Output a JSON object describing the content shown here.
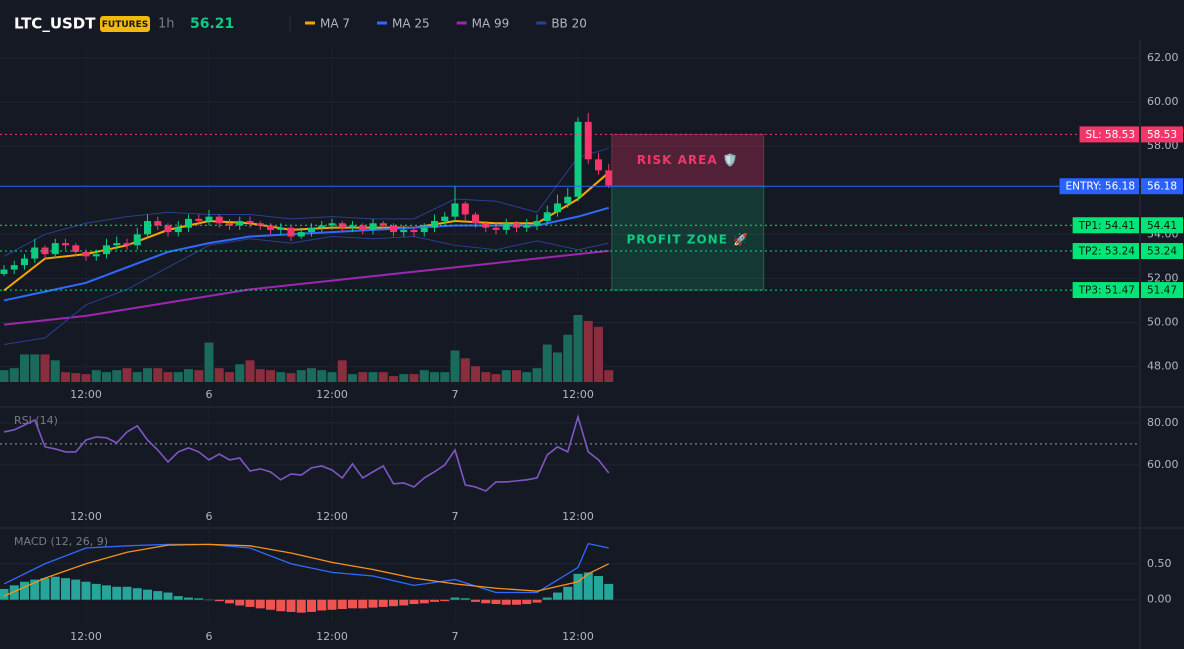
{
  "header": {
    "symbol": "LTC_USDT",
    "badge": "FUTURES",
    "interval": "1h",
    "price": 56.21
  },
  "chart_data": [
    {
      "type": "candlestick",
      "categories": [
        null,
        null,
        null,
        null,
        null,
        null,
        null,
        null,
        "12:00",
        null,
        null,
        null,
        null,
        null,
        null,
        null,
        null,
        null,
        null,
        null,
        "6",
        null,
        null,
        null,
        null,
        null,
        null,
        null,
        null,
        null,
        null,
        null,
        "12:00",
        null,
        null,
        null,
        null,
        null,
        null,
        null,
        null,
        null,
        null,
        null,
        "7",
        null,
        null,
        null,
        null,
        null,
        null,
        null,
        null,
        null,
        null,
        null,
        "12:00",
        null,
        null,
        null
      ],
      "open": [
        52.2,
        52.4,
        52.6,
        52.9,
        53.4,
        53.1,
        53.6,
        53.5,
        53.2,
        53.0,
        53.1,
        53.5,
        53.6,
        53.5,
        54.0,
        54.6,
        54.4,
        54.1,
        54.3,
        54.7,
        54.6,
        54.8,
        54.5,
        54.4,
        54.6,
        54.5,
        54.4,
        54.2,
        54.3,
        53.9,
        54.1,
        54.3,
        54.4,
        54.5,
        54.3,
        54.4,
        54.2,
        54.5,
        54.4,
        54.1,
        54.2,
        54.1,
        54.3,
        54.6,
        54.8,
        55.4,
        54.9,
        54.5,
        54.3,
        54.2,
        54.5,
        54.3,
        54.4,
        54.6,
        55.0,
        55.4,
        55.7,
        59.1,
        57.4,
        56.9
      ],
      "high": [
        52.6,
        52.8,
        53.1,
        53.8,
        53.5,
        53.8,
        53.8,
        53.6,
        53.3,
        53.3,
        53.8,
        53.9,
        53.8,
        54.3,
        54.9,
        54.8,
        54.5,
        54.6,
        54.9,
        54.9,
        55.1,
        54.9,
        54.7,
        54.8,
        54.8,
        54.6,
        54.5,
        54.5,
        54.4,
        54.3,
        54.5,
        54.6,
        54.7,
        54.6,
        54.6,
        54.5,
        54.7,
        54.6,
        54.5,
        54.4,
        54.3,
        54.5,
        54.9,
        55.0,
        56.2,
        55.5,
        55.0,
        54.6,
        54.5,
        54.7,
        54.6,
        54.7,
        54.9,
        55.3,
        55.8,
        56.1,
        59.3,
        59.5,
        57.7,
        57.2
      ],
      "low": [
        52.1,
        52.2,
        52.4,
        52.7,
        52.9,
        52.9,
        53.3,
        53.0,
        52.8,
        52.8,
        52.9,
        53.3,
        53.3,
        53.3,
        53.8,
        54.2,
        53.9,
        53.9,
        54.1,
        54.4,
        54.4,
        54.3,
        54.2,
        54.2,
        54.3,
        54.2,
        54.0,
        54.0,
        53.7,
        53.8,
        53.9,
        54.1,
        54.2,
        54.1,
        54.1,
        54.0,
        54.0,
        54.2,
        53.9,
        53.9,
        53.9,
        53.9,
        54.1,
        54.4,
        54.6,
        54.6,
        54.3,
        54.1,
        54.0,
        54.0,
        54.1,
        54.1,
        54.2,
        54.4,
        54.8,
        55.2,
        55.5,
        57.2,
        56.7,
        56.1
      ],
      "close": [
        52.4,
        52.6,
        52.9,
        53.4,
        53.1,
        53.6,
        53.5,
        53.2,
        53.0,
        53.1,
        53.5,
        53.6,
        53.5,
        54.0,
        54.6,
        54.4,
        54.1,
        54.3,
        54.7,
        54.6,
        54.8,
        54.5,
        54.4,
        54.6,
        54.5,
        54.4,
        54.2,
        54.3,
        53.9,
        54.1,
        54.3,
        54.4,
        54.5,
        54.3,
        54.4,
        54.2,
        54.5,
        54.4,
        54.1,
        54.2,
        54.1,
        54.3,
        54.6,
        54.8,
        55.4,
        54.9,
        54.5,
        54.3,
        54.2,
        54.5,
        54.3,
        54.4,
        54.6,
        55.0,
        55.4,
        55.7,
        59.1,
        57.4,
        56.9,
        56.21
      ],
      "volume": [
        12,
        14,
        28,
        28,
        28,
        22,
        10,
        9,
        8,
        12,
        10,
        12,
        14,
        10,
        14,
        14,
        10,
        10,
        13,
        12,
        40,
        14,
        10,
        18,
        22,
        13,
        12,
        10,
        9,
        12,
        14,
        12,
        10,
        22,
        8,
        10,
        10,
        10,
        6,
        8,
        8,
        12,
        10,
        10,
        32,
        24,
        16,
        10,
        8,
        12,
        12,
        10,
        14,
        38,
        30,
        48,
        68,
        62,
        56,
        12
      ],
      "up_color": "#0ecb81",
      "down_color": "#f23669",
      "volume_up_color": "#1b6b5c",
      "volume_down_color": "#8a2d3d",
      "ylim": [
        47.3,
        62.45
      ],
      "yticks": [
        {
          "value": 62,
          "label": "62.00"
        },
        {
          "value": 60,
          "label": "60.00"
        },
        {
          "value": 58,
          "label": "58.00"
        },
        {
          "value": 54,
          "label": "54.00"
        },
        {
          "value": 52,
          "label": "52.00"
        },
        {
          "value": 50,
          "label": "50.00"
        },
        {
          "value": 48,
          "label": "48.00"
        }
      ],
      "series": [
        {
          "name": "MA 7",
          "color": "#f7a600",
          "x": [
            0,
            4,
            8,
            12,
            16,
            20,
            24,
            28,
            32,
            36,
            40,
            44,
            48,
            52,
            56,
            59
          ],
          "values": [
            51.45,
            52.9,
            53.1,
            53.5,
            54.2,
            54.6,
            54.5,
            54.2,
            54.3,
            54.3,
            54.3,
            54.6,
            54.5,
            54.5,
            55.6,
            56.8
          ]
        },
        {
          "name": "MA 25",
          "color": "#2f6bff",
          "x": [
            0,
            4,
            8,
            12,
            16,
            20,
            24,
            28,
            32,
            36,
            40,
            44,
            48,
            52,
            56,
            59
          ],
          "values": [
            51.0,
            51.4,
            51.8,
            52.5,
            53.2,
            53.6,
            53.9,
            54.0,
            54.1,
            54.2,
            54.3,
            54.4,
            54.4,
            54.4,
            54.8,
            55.2
          ]
        },
        {
          "name": "MA 99",
          "color": "#9c27b0",
          "x": [
            0,
            4,
            8,
            12,
            16,
            20,
            24,
            28,
            32,
            36,
            40,
            44,
            48,
            52,
            56,
            59
          ],
          "values": [
            49.9,
            50.1,
            50.3,
            50.6,
            50.9,
            51.2,
            51.5,
            51.7,
            51.9,
            52.1,
            52.3,
            52.5,
            52.7,
            52.9,
            53.1,
            53.25
          ]
        },
        {
          "name": "BB 20",
          "color": "#2b3f8f",
          "x": [
            0,
            4,
            8,
            12,
            16,
            20,
            24,
            28,
            32,
            36,
            40,
            44,
            48,
            52,
            56,
            59
          ],
          "upper": [
            53.0,
            54.0,
            54.5,
            54.8,
            55.0,
            54.9,
            54.9,
            54.7,
            54.8,
            54.7,
            54.7,
            55.6,
            55.5,
            55.0,
            57.5,
            57.9
          ],
          "lower": [
            49.0,
            49.3,
            50.8,
            51.5,
            52.5,
            53.5,
            53.8,
            53.6,
            53.9,
            53.8,
            53.9,
            53.5,
            53.3,
            53.7,
            53.3,
            53.6
          ]
        }
      ],
      "levels": [
        {
          "label": "SL: 58.53",
          "value": 58.53,
          "color": "#f23669",
          "dash": true
        },
        {
          "label": "ENTRY: 56.18",
          "value": 56.18,
          "color": "#2962ff",
          "dash": false
        },
        {
          "label": "TP1: 54.41",
          "value": 54.41,
          "color": "#00e676",
          "dash": true
        },
        {
          "label": "TP2: 53.24",
          "value": 53.24,
          "color": "#00e676",
          "dash": true
        },
        {
          "label": "TP3: 51.47",
          "value": 51.47,
          "color": "#00e676",
          "dash": true
        }
      ],
      "zones": [
        {
          "label": "RISK AREA 🛡️",
          "color": "#f23669"
        },
        {
          "label": "PROFIT ZONE 🚀",
          "color": "#0ecb81"
        }
      ]
    },
    {
      "type": "line",
      "title": "RSI (14)",
      "color": "#7e57c2",
      "reference": 70,
      "values": [
        75.7,
        76.7,
        79.0,
        81.4,
        68.6,
        67.6,
        66.2,
        66.2,
        71.9,
        73.3,
        72.9,
        70.5,
        75.7,
        78.6,
        71.9,
        67.1,
        61.4,
        66.2,
        68.1,
        66.2,
        62.4,
        65.2,
        62.4,
        63.3,
        57.1,
        58.1,
        56.7,
        52.9,
        55.7,
        55.2,
        58.6,
        59.5,
        57.6,
        53.8,
        60.5,
        53.8,
        56.7,
        59.5,
        51.0,
        51.4,
        49.5,
        53.8,
        56.7,
        60.0,
        67.1,
        50.5,
        49.5,
        47.6,
        51.9,
        51.9,
        52.4,
        52.9,
        53.8,
        64.8,
        68.6,
        66.2,
        82.9,
        66.2,
        62.4,
        56.2
      ],
      "ylim": [
        43.3,
        87.1
      ],
      "yticks": [
        {
          "value": 80,
          "label": "80.00"
        },
        {
          "value": 60,
          "label": "60.00"
        }
      ]
    },
    {
      "type": "macd",
      "title": "MACD (12, 26, 9)",
      "up_color": "#26a69a",
      "down_color": "#ef5350",
      "histogram": [
        0.15,
        0.2,
        0.25,
        0.28,
        0.3,
        0.32,
        0.3,
        0.28,
        0.25,
        0.22,
        0.2,
        0.18,
        0.18,
        0.16,
        0.14,
        0.12,
        0.1,
        0.05,
        0.03,
        0.02,
        0.0,
        -0.02,
        -0.05,
        -0.08,
        -0.1,
        -0.12,
        -0.14,
        -0.16,
        -0.17,
        -0.18,
        -0.17,
        -0.15,
        -0.14,
        -0.13,
        -0.12,
        -0.12,
        -0.11,
        -0.1,
        -0.09,
        -0.08,
        -0.06,
        -0.05,
        -0.03,
        -0.02,
        0.03,
        0.02,
        -0.03,
        -0.05,
        -0.06,
        -0.07,
        -0.07,
        -0.06,
        -0.04,
        0.03,
        0.1,
        0.18,
        0.36,
        0.38,
        0.33,
        0.22
      ],
      "x": [
        0,
        4,
        8,
        12,
        16,
        20,
        24,
        28,
        32,
        36,
        40,
        44,
        48,
        52,
        56,
        57,
        59
      ],
      "macd": {
        "color": "#2f6bff",
        "values": [
          0.22,
          0.5,
          0.72,
          0.75,
          0.77,
          0.77,
          0.72,
          0.5,
          0.38,
          0.33,
          0.2,
          0.28,
          0.1,
          0.1,
          0.45,
          0.78,
          0.72
        ]
      },
      "signal": {
        "color": "#f7931a",
        "values": [
          0.05,
          0.3,
          0.5,
          0.66,
          0.76,
          0.77,
          0.75,
          0.65,
          0.52,
          0.42,
          0.3,
          0.22,
          0.16,
          0.12,
          0.25,
          0.36,
          0.5
        ]
      },
      "ylim": [
        -0.31,
        0.97
      ],
      "yticks": [
        {
          "value": 0.5,
          "label": "0.50"
        },
        {
          "value": 0,
          "label": "0.00"
        }
      ]
    }
  ]
}
